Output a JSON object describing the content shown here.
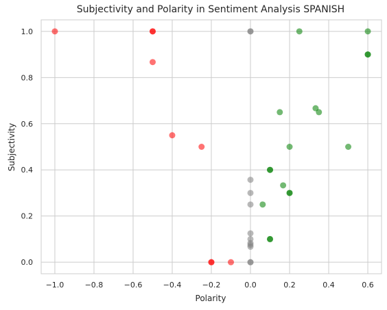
{
  "chart_data": {
    "type": "scatter",
    "title": "Subjectivity and Polarity in Sentiment Analysis SPANISH",
    "xlabel": "Polarity",
    "ylabel": "Subjectivity",
    "xlim": [
      -1.07,
      0.67
    ],
    "ylim": [
      -0.05,
      1.05
    ],
    "xticks": [
      -1.0,
      -0.8,
      -0.6,
      -0.4,
      -0.2,
      0.0,
      0.2,
      0.4,
      0.6
    ],
    "xtick_labels": [
      "−1.0",
      "−0.8",
      "−0.6",
      "−0.4",
      "−0.2",
      "0.0",
      "0.2",
      "0.4",
      "0.6"
    ],
    "yticks": [
      0.0,
      0.2,
      0.4,
      0.6,
      0.8,
      1.0
    ],
    "ytick_labels": [
      "0.0",
      "0.2",
      "0.4",
      "0.6",
      "0.8",
      "1.0"
    ],
    "grid": true,
    "colors": {
      "positive": "#008000",
      "negative": "#ff0000",
      "neutral": "#808080"
    },
    "points": [
      {
        "x": -1.0,
        "y": 1.0,
        "class": "negative"
      },
      {
        "x": -0.5,
        "y": 1.0,
        "class": "negative"
      },
      {
        "x": -0.5,
        "y": 1.0,
        "class": "negative"
      },
      {
        "x": -0.5,
        "y": 0.867,
        "class": "negative"
      },
      {
        "x": -0.4,
        "y": 0.55,
        "class": "negative"
      },
      {
        "x": -0.25,
        "y": 0.5,
        "class": "negative"
      },
      {
        "x": -0.2,
        "y": 0.0,
        "class": "negative"
      },
      {
        "x": -0.2,
        "y": 0.0,
        "class": "negative"
      },
      {
        "x": -0.1,
        "y": 0.0,
        "class": "negative"
      },
      {
        "x": 0.0,
        "y": 1.0,
        "class": "neutral"
      },
      {
        "x": 0.0,
        "y": 1.0,
        "class": "neutral"
      },
      {
        "x": 0.0,
        "y": 0.357,
        "class": "neutral"
      },
      {
        "x": 0.0,
        "y": 0.3,
        "class": "neutral"
      },
      {
        "x": 0.0,
        "y": 0.25,
        "class": "neutral"
      },
      {
        "x": 0.0,
        "y": 0.125,
        "class": "neutral"
      },
      {
        "x": 0.0,
        "y": 0.1,
        "class": "neutral"
      },
      {
        "x": 0.0,
        "y": 0.083,
        "class": "neutral"
      },
      {
        "x": 0.0,
        "y": 0.075,
        "class": "neutral"
      },
      {
        "x": 0.0,
        "y": 0.067,
        "class": "neutral"
      },
      {
        "x": 0.0,
        "y": 0.0,
        "class": "neutral"
      },
      {
        "x": 0.0,
        "y": 0.0,
        "class": "neutral"
      },
      {
        "x": 0.25,
        "y": 1.0,
        "class": "positive"
      },
      {
        "x": 0.6,
        "y": 1.0,
        "class": "positive"
      },
      {
        "x": 0.6,
        "y": 0.9,
        "class": "positive"
      },
      {
        "x": 0.6,
        "y": 0.9,
        "class": "positive"
      },
      {
        "x": 0.333,
        "y": 0.667,
        "class": "positive"
      },
      {
        "x": 0.35,
        "y": 0.65,
        "class": "positive"
      },
      {
        "x": 0.15,
        "y": 0.65,
        "class": "positive"
      },
      {
        "x": 0.2,
        "y": 0.5,
        "class": "positive"
      },
      {
        "x": 0.5,
        "y": 0.5,
        "class": "positive"
      },
      {
        "x": 0.1,
        "y": 0.4,
        "class": "positive"
      },
      {
        "x": 0.1,
        "y": 0.4,
        "class": "positive"
      },
      {
        "x": 0.167,
        "y": 0.333,
        "class": "positive"
      },
      {
        "x": 0.2,
        "y": 0.3,
        "class": "positive"
      },
      {
        "x": 0.2,
        "y": 0.3,
        "class": "positive"
      },
      {
        "x": 0.0625,
        "y": 0.25,
        "class": "positive"
      },
      {
        "x": 0.1,
        "y": 0.1,
        "class": "positive"
      },
      {
        "x": 0.1,
        "y": 0.1,
        "class": "positive"
      }
    ]
  }
}
